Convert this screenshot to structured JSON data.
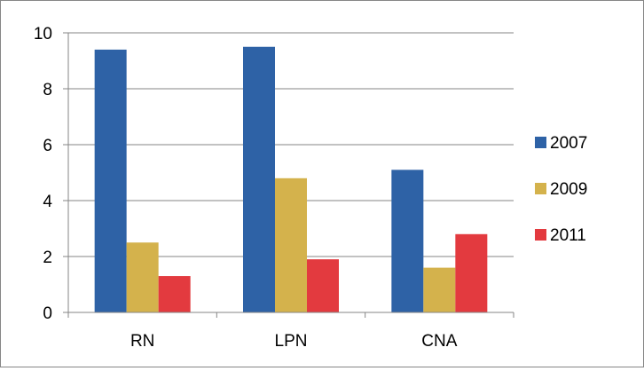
{
  "chart_data": {
    "type": "bar",
    "categories": [
      "RN",
      "LPN",
      "CNA"
    ],
    "series": [
      {
        "name": "2007",
        "values": [
          9.4,
          9.5,
          5.1
        ],
        "color": "#2e62a6"
      },
      {
        "name": "2009",
        "values": [
          2.5,
          4.8,
          1.6
        ],
        "color": "#d4b24c"
      },
      {
        "name": "2011",
        "values": [
          1.3,
          1.9,
          2.8
        ],
        "color": "#e33a3f"
      }
    ],
    "yticks": [
      "0",
      "2",
      "4",
      "6",
      "8",
      "10"
    ],
    "ylim": [
      0,
      10
    ],
    "grid": true,
    "legend_position": "right"
  }
}
